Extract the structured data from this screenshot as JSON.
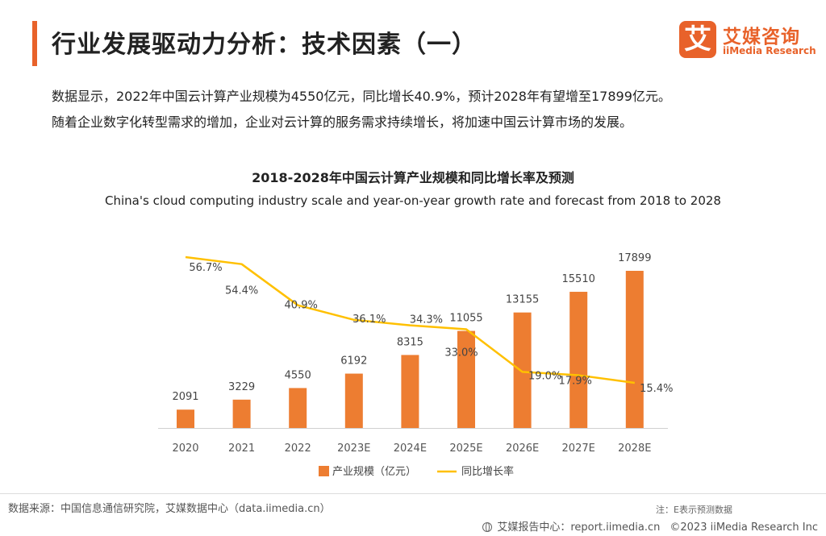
{
  "header": {
    "title": "行业发展驱动力分析：技术因素（一）",
    "logo_mark": "艾",
    "logo_cn": "艾媒咨询",
    "logo_en": "iiMedia Research"
  },
  "intro": {
    "line1": "数据显示，2022年中国云计算产业规模为4550亿元，同比增长40.9%，预计2028年有望增至17899亿元。",
    "line2": "随着企业数字化转型需求的增加，企业对云计算的服务需求持续增长，将加速中国云计算市场的发展。"
  },
  "chart_data": {
    "type": "bar",
    "title": "2018-2028年中国云计算产业规模和同比增长率及预测",
    "subtitle": "China's cloud computing industry scale and year-on-year growth rate and forecast from 2018 to 2028",
    "categories": [
      "2020",
      "2021",
      "2022",
      "2023E",
      "2024E",
      "2025E",
      "2026E",
      "2027E",
      "2028E"
    ],
    "series": [
      {
        "name": "产业规模（亿元）",
        "type": "bar",
        "color": "#ed7d31",
        "values": [
          2091,
          3229,
          4550,
          6192,
          8315,
          11055,
          13155,
          15510,
          17899
        ],
        "labels": [
          "2091",
          "3229",
          "4550",
          "6192",
          "8315",
          "11055",
          "13155",
          "15510",
          "17899"
        ]
      },
      {
        "name": "同比增长率",
        "type": "line",
        "color": "#ffc000",
        "values": [
          56.7,
          54.4,
          40.9,
          36.1,
          34.3,
          33.0,
          19.0,
          17.9,
          15.4
        ],
        "labels": [
          "56.7%",
          "54.4%",
          "40.9%",
          "36.1%",
          "34.3%",
          "33.0%",
          "19.0%",
          "17.9%",
          "15.4%"
        ]
      }
    ],
    "legend_position": "bottom",
    "grid": false
  },
  "footer": {
    "source": "数据来源：中国信息通信研究院，艾媒数据中心（data.iimedia.cn）",
    "note": "注：E表示预测数据",
    "report": "艾媒报告中心：report.iimedia.cn",
    "copyright": "©2023  iiMedia Research  Inc"
  }
}
